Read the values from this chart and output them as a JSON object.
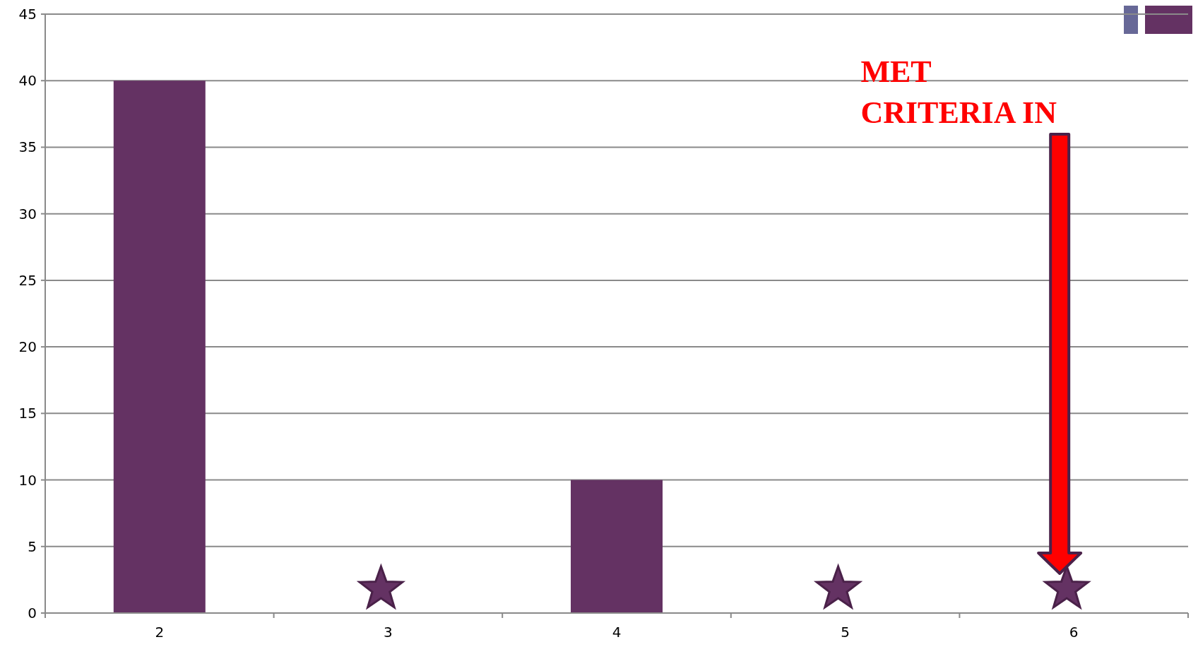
{
  "chart_data": {
    "type": "bar",
    "categories": [
      "2",
      "3",
      "4",
      "5",
      "6"
    ],
    "values": [
      40,
      0,
      10,
      0,
      0
    ],
    "color": "#643263",
    "ylim": [
      0,
      45
    ],
    "yticks": [
      0,
      5,
      10,
      15,
      20,
      25,
      30,
      35,
      40,
      45
    ],
    "grid": "y",
    "annotations": [
      "MET CRITERIA IN"
    ]
  }
}
